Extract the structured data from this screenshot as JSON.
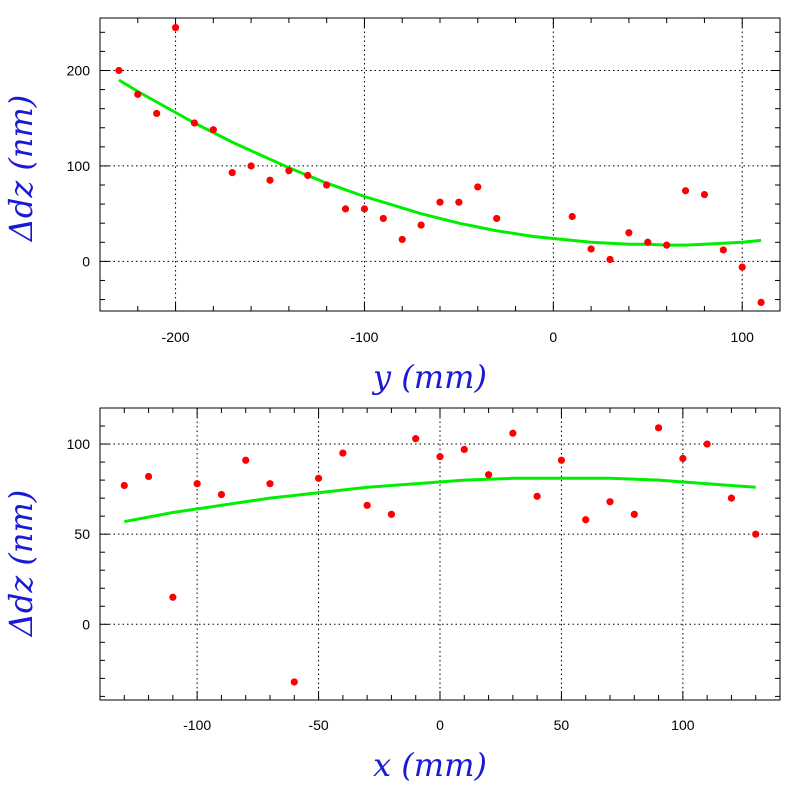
{
  "chart_data": [
    {
      "type": "scatter",
      "title": "",
      "xlabel": "y (mm)",
      "ylabel": "Δdz (nm)",
      "xlim": [
        -240,
        120
      ],
      "ylim": [
        -52,
        255
      ],
      "x_ticks": [
        -200,
        -100,
        0,
        100
      ],
      "y_ticks": [
        0,
        100,
        200
      ],
      "x_minor_step": 20,
      "y_minor_step": 20,
      "grid": true,
      "point_color": "#ff0000",
      "fit_color": "#00ee00",
      "series": [
        {
          "x": [
            -230,
            -220,
            -210,
            -200,
            -190,
            -180,
            -170,
            -160,
            -150,
            -140,
            -130,
            -120,
            -110,
            -100,
            -90,
            -80,
            -70,
            -60,
            -50,
            -40,
            -30,
            10,
            20,
            30,
            40,
            50,
            60,
            70,
            80,
            90,
            100,
            110
          ],
          "y": [
            200,
            175,
            155,
            245,
            145,
            138,
            93,
            100,
            85,
            95,
            90,
            80,
            55,
            55,
            45,
            23,
            38,
            62,
            62,
            78,
            45,
            47,
            13,
            2,
            30,
            20,
            17,
            74,
            70,
            12,
            -6,
            -43
          ]
        },
        {
          "x": [
            -230,
            -220,
            -210,
            -200,
            -190,
            -180,
            -170,
            -160,
            -150,
            -140,
            -130,
            -120,
            -110,
            -100,
            -90,
            -80,
            -70,
            -60,
            -50,
            -40,
            -30,
            -20,
            -10,
            0,
            10,
            20,
            30,
            40,
            50,
            60,
            70,
            80,
            90,
            100,
            110
          ],
          "y": [
            190,
            178,
            167,
            156,
            145,
            135,
            125,
            116,
            107,
            98,
            90,
            82,
            75,
            68,
            62,
            56,
            50,
            45,
            40,
            36,
            32,
            29,
            26,
            24,
            22,
            20,
            19,
            18,
            18,
            17,
            17,
            18,
            19,
            20,
            22
          ]
        }
      ]
    },
    {
      "type": "scatter",
      "title": "",
      "xlabel": "x (mm)",
      "ylabel": "Δdz (nm)",
      "xlim": [
        -140,
        140
      ],
      "ylim": [
        -42,
        120
      ],
      "x_ticks": [
        -100,
        -50,
        0,
        50,
        100
      ],
      "y_ticks": [
        0,
        50,
        100
      ],
      "x_minor_step": 10,
      "y_minor_step": 10,
      "grid": true,
      "point_color": "#ff0000",
      "fit_color": "#00ee00",
      "series": [
        {
          "x": [
            -130,
            -120,
            -110,
            -100,
            -90,
            -80,
            -70,
            -60,
            -50,
            -40,
            -30,
            -20,
            -10,
            0,
            10,
            20,
            30,
            40,
            50,
            60,
            70,
            80,
            90,
            100,
            110,
            120,
            130
          ],
          "y": [
            77,
            82,
            15,
            78,
            72,
            91,
            78,
            -32,
            81,
            95,
            66,
            61,
            103,
            93,
            97,
            83,
            106,
            71,
            91,
            58,
            68,
            61,
            109,
            92,
            100,
            70,
            50
          ]
        },
        {
          "x": [
            -130,
            -110,
            -90,
            -70,
            -50,
            -30,
            -10,
            10,
            30,
            50,
            70,
            90,
            110,
            130
          ],
          "y": [
            57,
            62,
            66,
            70,
            73,
            76,
            78,
            80,
            81,
            81,
            81,
            80,
            78,
            76
          ]
        }
      ]
    }
  ]
}
